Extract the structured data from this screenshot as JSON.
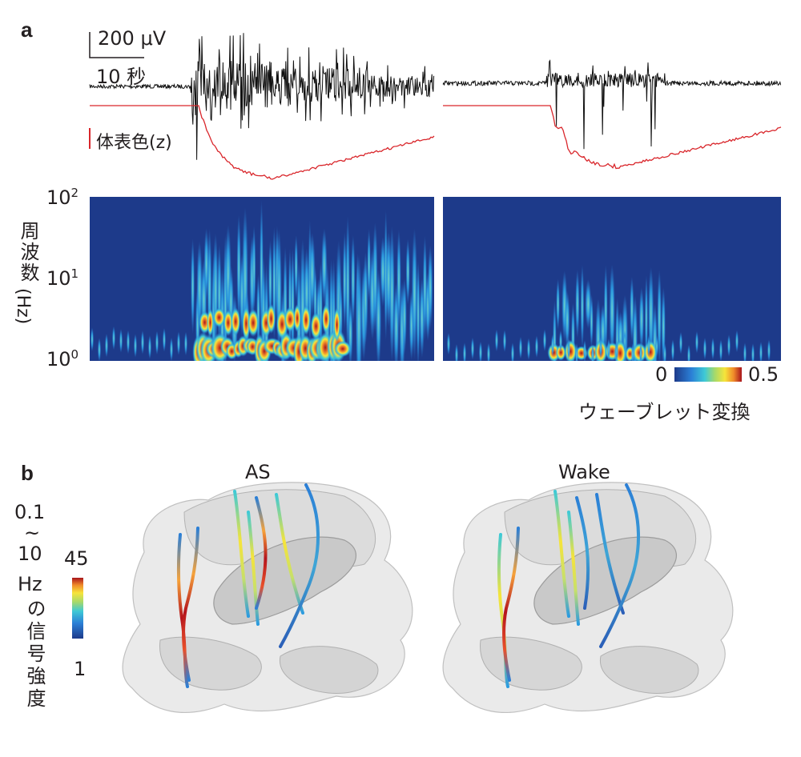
{
  "panel_a": {
    "label": "a",
    "scale_voltage": "200 μV",
    "scale_time": "10 秒",
    "trace_label": "体表色(z)",
    "y_axis_label_main": "周波数",
    "y_axis_label_unit": "(Hz)",
    "ticks": [
      {
        "base": "10",
        "exp": "2"
      },
      {
        "base": "10",
        "exp": "1"
      },
      {
        "base": "10",
        "exp": "0"
      }
    ],
    "colorbar": {
      "min": "0",
      "max": "0.5",
      "label": "ウェーブレット変換"
    },
    "colors": {
      "eeg": "#111111",
      "skin": "#d9262b",
      "background": "#1d3a8a"
    }
  },
  "panel_b": {
    "label": "b",
    "titles": [
      "AS",
      "Wake"
    ],
    "colorbar": {
      "label_lines": [
        "0.1",
        "~",
        "10",
        "Hz",
        "の信号",
        "強度"
      ],
      "max": "45",
      "min": "1"
    }
  }
}
